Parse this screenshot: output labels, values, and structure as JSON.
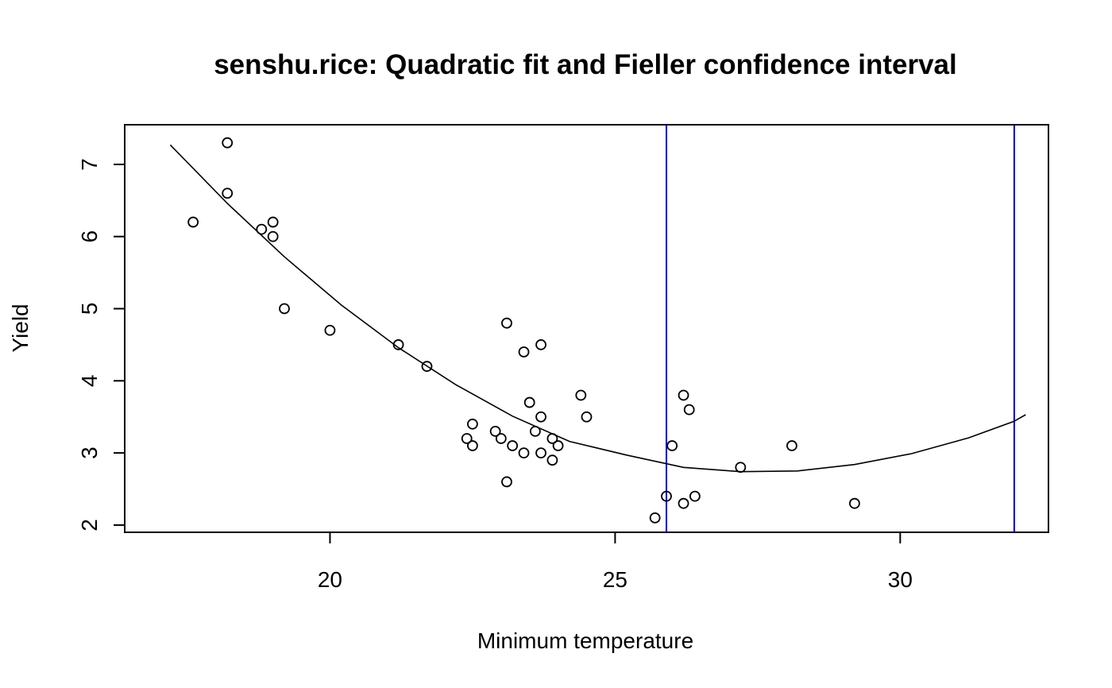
{
  "chart_data": {
    "type": "scatter",
    "title": "senshu.rice: Quadratic fit and Fieller confidence interval",
    "xlabel": "Minimum temperature",
    "ylabel": "Yield",
    "xlim": [
      16.4,
      32.6
    ],
    "ylim": [
      1.9,
      7.55
    ],
    "x_ticks": [
      20,
      25,
      30
    ],
    "y_ticks": [
      2,
      3,
      4,
      5,
      6,
      7
    ],
    "grid": false,
    "legend": "none",
    "colors": {
      "points": "#000000",
      "fit_line": "#000000",
      "interval_lines": "#0000cc",
      "axes": "#000000",
      "background": "#ffffff"
    },
    "points": [
      {
        "x": 17.6,
        "y": 6.2
      },
      {
        "x": 18.2,
        "y": 7.3
      },
      {
        "x": 18.2,
        "y": 6.6
      },
      {
        "x": 18.8,
        "y": 6.1
      },
      {
        "x": 19.0,
        "y": 6.2
      },
      {
        "x": 19.0,
        "y": 6.0
      },
      {
        "x": 19.2,
        "y": 5.0
      },
      {
        "x": 20.0,
        "y": 4.7
      },
      {
        "x": 21.2,
        "y": 4.5
      },
      {
        "x": 21.7,
        "y": 4.2
      },
      {
        "x": 22.4,
        "y": 3.2
      },
      {
        "x": 22.5,
        "y": 3.4
      },
      {
        "x": 22.5,
        "y": 3.1
      },
      {
        "x": 22.9,
        "y": 3.3
      },
      {
        "x": 23.0,
        "y": 3.2
      },
      {
        "x": 23.1,
        "y": 4.8
      },
      {
        "x": 23.1,
        "y": 2.6
      },
      {
        "x": 23.2,
        "y": 3.1
      },
      {
        "x": 23.4,
        "y": 4.4
      },
      {
        "x": 23.4,
        "y": 3.0
      },
      {
        "x": 23.5,
        "y": 3.7
      },
      {
        "x": 23.6,
        "y": 3.3
      },
      {
        "x": 23.7,
        "y": 4.5
      },
      {
        "x": 23.7,
        "y": 3.5
      },
      {
        "x": 23.7,
        "y": 3.0
      },
      {
        "x": 23.9,
        "y": 3.2
      },
      {
        "x": 23.9,
        "y": 2.9
      },
      {
        "x": 24.0,
        "y": 3.1
      },
      {
        "x": 24.4,
        "y": 3.8
      },
      {
        "x": 24.5,
        "y": 3.5
      },
      {
        "x": 25.7,
        "y": 2.1
      },
      {
        "x": 25.9,
        "y": 2.4
      },
      {
        "x": 26.0,
        "y": 3.1
      },
      {
        "x": 26.2,
        "y": 3.8
      },
      {
        "x": 26.2,
        "y": 2.3
      },
      {
        "x": 26.3,
        "y": 3.6
      },
      {
        "x": 26.4,
        "y": 2.4
      },
      {
        "x": 27.2,
        "y": 2.8
      },
      {
        "x": 28.1,
        "y": 3.1
      },
      {
        "x": 29.2,
        "y": 2.3
      }
    ],
    "fit_curve": [
      {
        "x": 17.2,
        "y": 7.27
      },
      {
        "x": 18.2,
        "y": 6.46
      },
      {
        "x": 19.2,
        "y": 5.72
      },
      {
        "x": 20.2,
        "y": 5.05
      },
      {
        "x": 21.2,
        "y": 4.46
      },
      {
        "x": 22.2,
        "y": 3.95
      },
      {
        "x": 23.2,
        "y": 3.51
      },
      {
        "x": 24.2,
        "y": 3.16
      },
      {
        "x": 25.2,
        "y": 2.97
      },
      {
        "x": 26.2,
        "y": 2.8
      },
      {
        "x": 27.2,
        "y": 2.74
      },
      {
        "x": 28.2,
        "y": 2.75
      },
      {
        "x": 29.2,
        "y": 2.84
      },
      {
        "x": 30.2,
        "y": 2.99
      },
      {
        "x": 31.2,
        "y": 3.21
      },
      {
        "x": 32.0,
        "y": 3.44
      },
      {
        "x": 32.2,
        "y": 3.53
      }
    ],
    "interval_x": [
      25.9,
      32.0
    ]
  }
}
